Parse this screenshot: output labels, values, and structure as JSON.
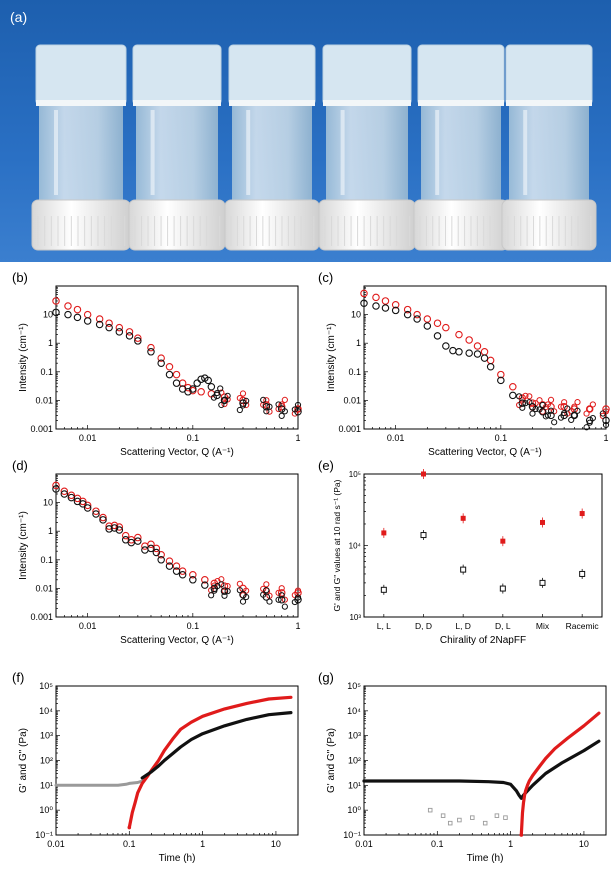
{
  "photo": {
    "label": "(a)",
    "vial_count": 6,
    "colors": {
      "background": "#1f64b8",
      "gel_top": "#d8e6f0",
      "glass": "#cfe0ea",
      "cap": "#f3f3f3"
    }
  },
  "colors": {
    "series_red": "#e01b1b",
    "series_black": "#111111",
    "series_grey": "#9a9a9a"
  },
  "chart_data": [
    {
      "id": "b",
      "label": "(b)",
      "type": "scatter",
      "xscale": "log",
      "yscale": "log",
      "xlim": [
        0.005,
        1
      ],
      "ylim": [
        0.001,
        100
      ],
      "xticks": [
        "0.01",
        "0.1",
        "1"
      ],
      "yticks": [
        "0.001",
        "0.01",
        "0.1",
        "1",
        "10",
        "100"
      ],
      "xlabel": "Scattering Vector, Q (A⁻¹)",
      "ylabel": "Intensity (cm⁻¹)",
      "series": [
        {
          "color": "red",
          "x": [
            0.005,
            0.0065,
            0.008,
            0.01,
            0.013,
            0.016,
            0.02,
            0.025,
            0.03,
            0.04,
            0.05,
            0.06,
            0.07,
            0.08,
            0.09,
            0.1,
            0.12,
            0.15,
            0.2,
            0.3,
            0.5,
            0.7,
            1.0
          ],
          "y": [
            30,
            20,
            15,
            10,
            7,
            5,
            3.5,
            2.5,
            1.5,
            0.7,
            0.3,
            0.15,
            0.08,
            0.04,
            0.028,
            0.022,
            0.02,
            0.017,
            0.013,
            0.01,
            0.007,
            0.006,
            0.005
          ]
        },
        {
          "color": "black",
          "x": [
            0.005,
            0.0065,
            0.008,
            0.01,
            0.013,
            0.016,
            0.02,
            0.025,
            0.03,
            0.04,
            0.05,
            0.06,
            0.07,
            0.08,
            0.09,
            0.1,
            0.11,
            0.12,
            0.13,
            0.14,
            0.15,
            0.17,
            0.2,
            0.3,
            0.5,
            0.7,
            1.0
          ],
          "y": [
            12,
            10,
            8,
            6,
            4.5,
            3.5,
            2.5,
            1.8,
            1.2,
            0.5,
            0.2,
            0.08,
            0.04,
            0.025,
            0.02,
            0.025,
            0.04,
            0.055,
            0.06,
            0.05,
            0.03,
            0.015,
            0.01,
            0.008,
            0.006,
            0.005,
            0.004
          ]
        }
      ]
    },
    {
      "id": "c",
      "label": "(c)",
      "type": "scatter",
      "xscale": "log",
      "yscale": "log",
      "xlim": [
        0.005,
        1
      ],
      "ylim": [
        0.001,
        100
      ],
      "xticks": [
        "0.01",
        "0.1",
        "1"
      ],
      "yticks": [
        "0.001",
        "0.01",
        "0.1",
        "1",
        "10",
        "100"
      ],
      "xlabel": "Scattering Vector, Q (A⁻¹)",
      "ylabel": "Intensity (cm⁻¹)",
      "series": [
        {
          "color": "red",
          "x": [
            0.005,
            0.0065,
            0.008,
            0.01,
            0.013,
            0.016,
            0.02,
            0.025,
            0.03,
            0.04,
            0.05,
            0.06,
            0.07,
            0.08,
            0.1,
            0.13,
            0.16,
            0.2,
            0.25,
            0.3,
            0.4,
            0.5,
            0.7,
            1.0
          ],
          "y": [
            55,
            40,
            30,
            22,
            15,
            10,
            7,
            5,
            3.5,
            2,
            1.3,
            0.8,
            0.5,
            0.25,
            0.08,
            0.03,
            0.012,
            0.008,
            0.007,
            0.006,
            0.006,
            0.005,
            0.005,
            0.005
          ]
        },
        {
          "color": "black",
          "x": [
            0.005,
            0.0065,
            0.008,
            0.01,
            0.013,
            0.016,
            0.02,
            0.025,
            0.03,
            0.035,
            0.04,
            0.05,
            0.06,
            0.07,
            0.08,
            0.1,
            0.13,
            0.16,
            0.2,
            0.25,
            0.3,
            0.4,
            0.5,
            0.7,
            1.0
          ],
          "y": [
            25,
            20,
            17,
            14,
            10,
            7,
            4,
            1.8,
            0.8,
            0.55,
            0.5,
            0.45,
            0.42,
            0.3,
            0.15,
            0.05,
            0.015,
            0.008,
            0.006,
            0.004,
            0.003,
            0.003,
            0.003,
            0.002,
            0.002
          ]
        }
      ]
    },
    {
      "id": "d",
      "label": "(d)",
      "type": "scatter",
      "xscale": "log",
      "yscale": "log",
      "xlim": [
        0.005,
        1
      ],
      "ylim": [
        0.001,
        100
      ],
      "xticks": [
        "0.01",
        "0.1",
        "1"
      ],
      "yticks": [
        "0.001",
        "0.01",
        "0.1",
        "1",
        "10",
        "100"
      ],
      "xlabel": "Scattering Vector, Q (A⁻¹)",
      "ylabel": "Intensity (cm⁻¹)",
      "series": [
        {
          "color": "red",
          "x": [
            0.005,
            0.006,
            0.007,
            0.008,
            0.009,
            0.01,
            0.012,
            0.014,
            0.016,
            0.018,
            0.02,
            0.023,
            0.026,
            0.03,
            0.035,
            0.04,
            0.045,
            0.05,
            0.06,
            0.07,
            0.08,
            0.1,
            0.13,
            0.16,
            0.2,
            0.3,
            0.5,
            0.7,
            1.0
          ],
          "y": [
            40,
            25,
            18,
            14,
            11,
            8,
            5,
            3,
            1.5,
            1.6,
            1.4,
            0.7,
            0.5,
            0.6,
            0.3,
            0.35,
            0.25,
            0.15,
            0.09,
            0.06,
            0.04,
            0.03,
            0.02,
            0.015,
            0.012,
            0.01,
            0.008,
            0.007,
            0.007
          ]
        },
        {
          "color": "black",
          "x": [
            0.005,
            0.006,
            0.007,
            0.008,
            0.009,
            0.01,
            0.012,
            0.014,
            0.016,
            0.018,
            0.02,
            0.023,
            0.026,
            0.03,
            0.035,
            0.04,
            0.045,
            0.05,
            0.06,
            0.07,
            0.08,
            0.1,
            0.13,
            0.16,
            0.2,
            0.3,
            0.5,
            0.7,
            1.0
          ],
          "y": [
            30,
            20,
            15,
            11,
            9,
            6.5,
            4,
            2.5,
            1.2,
            1.3,
            1.1,
            0.5,
            0.4,
            0.45,
            0.22,
            0.25,
            0.18,
            0.1,
            0.06,
            0.04,
            0.03,
            0.02,
            0.013,
            0.01,
            0.008,
            0.006,
            0.005,
            0.004,
            0.004
          ]
        }
      ]
    },
    {
      "id": "e",
      "label": "(e)",
      "type": "scatter",
      "yscale": "log",
      "ylim": [
        1000,
        100000
      ],
      "yticks": [
        "10³",
        "10⁴",
        "10⁵"
      ],
      "categories": [
        "L, L",
        "D, D",
        "L, D",
        "D, L",
        "Mix",
        "Racemic"
      ],
      "xlabel": "Chirality of 2NapFF",
      "ylabel": "G' and G\" values at 10 rad s⁻¹ (Pa)",
      "series": [
        {
          "color": "red",
          "marker": "filled-square",
          "values": [
            15000,
            100000,
            24000,
            11500,
            21000,
            28000
          ]
        },
        {
          "color": "black",
          "marker": "open-square",
          "values": [
            2400,
            14000,
            4600,
            2500,
            3000,
            4000
          ]
        }
      ]
    },
    {
      "id": "f",
      "label": "(f)",
      "type": "line",
      "xscale": "log",
      "yscale": "log",
      "xlim": [
        0.01,
        20
      ],
      "ylim": [
        0.1,
        100000
      ],
      "xticks": [
        "0.01",
        "0.1",
        "1",
        "10"
      ],
      "yticks": [
        "10⁻¹",
        "10⁰",
        "10¹",
        "10²",
        "10³",
        "10⁴",
        "10⁵"
      ],
      "xlabel": "Time (h)",
      "ylabel": "G' and G\" (Pa)",
      "series": [
        {
          "color": "grey",
          "x": [
            0.01,
            0.02,
            0.03,
            0.05,
            0.07,
            0.09,
            0.1,
            0.13,
            0.15
          ],
          "y": [
            10,
            10,
            10,
            10,
            10,
            11,
            12,
            13,
            15
          ]
        },
        {
          "color": "red",
          "x": [
            0.1,
            0.11,
            0.12,
            0.13,
            0.15,
            0.18,
            0.2,
            0.25,
            0.3,
            0.4,
            0.5,
            0.7,
            1,
            2,
            4,
            8,
            16
          ],
          "y": [
            0.2,
            0.8,
            2,
            5,
            12,
            25,
            40,
            100,
            250,
            800,
            1800,
            3500,
            6000,
            12000,
            20000,
            30000,
            35000
          ]
        },
        {
          "color": "black",
          "x": [
            0.15,
            0.2,
            0.25,
            0.3,
            0.4,
            0.5,
            0.7,
            1,
            2,
            4,
            8,
            16
          ],
          "y": [
            20,
            35,
            60,
            100,
            200,
            350,
            700,
            1200,
            2500,
            4500,
            7000,
            8500
          ]
        }
      ]
    },
    {
      "id": "g",
      "label": "(g)",
      "type": "line",
      "xscale": "log",
      "yscale": "log",
      "xlim": [
        0.01,
        20
      ],
      "ylim": [
        0.1,
        100000
      ],
      "xticks": [
        "0.01",
        "0.1",
        "1",
        "10"
      ],
      "yticks": [
        "10⁻¹",
        "10⁰",
        "10¹",
        "10²",
        "10³",
        "10⁴",
        "10⁵"
      ],
      "xlabel": "Time (h)",
      "ylabel": "G' and G\" (Pa)",
      "series": [
        {
          "color": "black",
          "x": [
            0.01,
            0.02,
            0.05,
            0.1,
            0.2,
            0.5,
            0.8,
            1,
            1.2,
            1.3,
            1.4,
            1.5,
            1.7,
            2,
            3,
            5,
            10,
            16
          ],
          "y": [
            15,
            15,
            15,
            15,
            15,
            14,
            13,
            11,
            6,
            4,
            3,
            4,
            6,
            10,
            30,
            80,
            250,
            600
          ]
        },
        {
          "color": "grey-scatter",
          "x": [
            0.08,
            0.12,
            0.15,
            0.2,
            0.3,
            0.45,
            0.65,
            0.85
          ],
          "y": [
            1,
            0.6,
            0.3,
            0.4,
            0.5,
            0.3,
            0.6,
            0.5
          ]
        },
        {
          "color": "red",
          "x": [
            1.4,
            1.45,
            1.5,
            1.55,
            1.6,
            1.7,
            1.8,
            2,
            2.5,
            3,
            4,
            6,
            10,
            16
          ],
          "y": [
            0.1,
            0.8,
            2,
            4,
            6,
            10,
            15,
            25,
            60,
            120,
            300,
            800,
            2500,
            8000
          ]
        }
      ]
    }
  ]
}
